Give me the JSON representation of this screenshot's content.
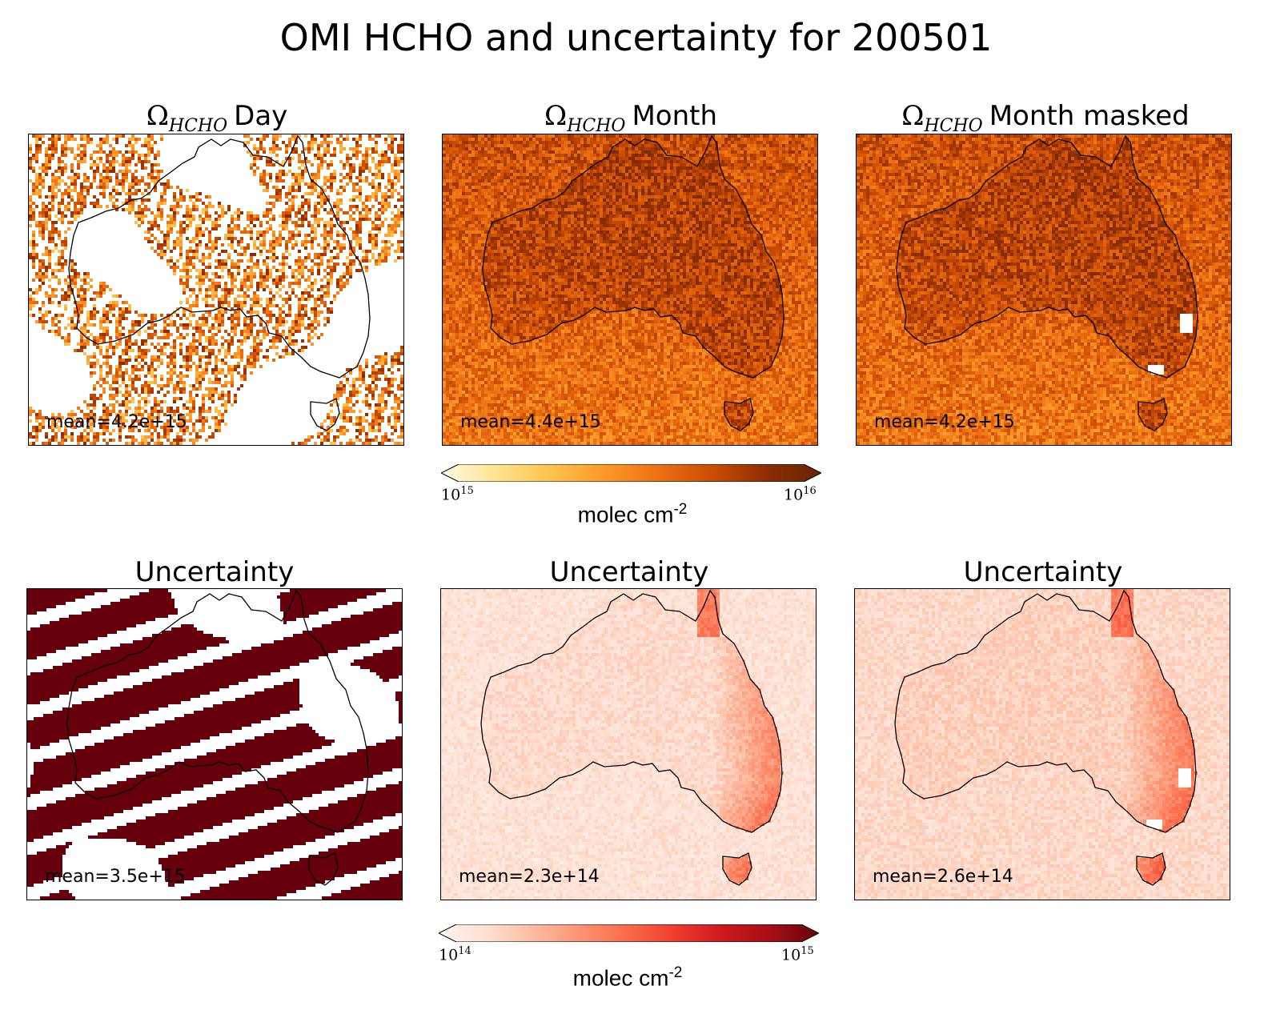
{
  "title": "OMI HCHO and uncertainty for 200501",
  "chart_data": [
    {
      "type": "heatmap",
      "panel": "day",
      "title_symbol": "Ω",
      "title_subscript": "HCHO",
      "title_text": "Day",
      "annotation": "mean=4.2e+15",
      "colormap": "YlOrBr",
      "clim": [
        1000000000000000.0,
        1e+16
      ],
      "coverage": "sparse"
    },
    {
      "type": "heatmap",
      "panel": "month",
      "title_symbol": "Ω",
      "title_subscript": "HCHO",
      "title_text": "Month",
      "annotation": "mean=4.4e+15",
      "colormap": "YlOrBr",
      "clim": [
        1000000000000000.0,
        1e+16
      ],
      "coverage": "full"
    },
    {
      "type": "heatmap",
      "panel": "month-masked",
      "title_symbol": "Ω",
      "title_subscript": "HCHO",
      "title_text": "Month masked",
      "annotation": "mean=4.2e+15",
      "colormap": "YlOrBr",
      "clim": [
        1000000000000000.0,
        1e+16
      ],
      "coverage": "masked"
    },
    {
      "type": "heatmap",
      "panel": "uncert-day",
      "title_text": "Uncertainty",
      "annotation": "mean=3.5e+15",
      "colormap": "Reds",
      "clim": [
        100000000000000.0,
        1000000000000000.0
      ],
      "coverage": "swaths"
    },
    {
      "type": "heatmap",
      "panel": "uncert-month",
      "title_text": "Uncertainty",
      "annotation": "mean=2.3e+14",
      "colormap": "Reds",
      "clim": [
        100000000000000.0,
        1000000000000000.0
      ],
      "coverage": "full"
    },
    {
      "type": "heatmap",
      "panel": "uncert-month-masked",
      "title_text": "Uncertainty",
      "annotation": "mean=2.6e+14",
      "colormap": "Reds",
      "clim": [
        100000000000000.0,
        1000000000000000.0
      ],
      "coverage": "masked"
    }
  ],
  "colorbars": [
    {
      "colormap": "YlOrBr",
      "min_base": "10",
      "min_exp": "15",
      "max_base": "10",
      "max_exp": "16",
      "label": "molec cm",
      "label_exp": "-2",
      "colors": [
        "#fffbe4",
        "#fee391",
        "#fec44f",
        "#fe9929",
        "#ec7014",
        "#cc4c02",
        "#8c2d04",
        "#662506"
      ]
    },
    {
      "colormap": "Reds",
      "min_base": "10",
      "min_exp": "14",
      "max_base": "10",
      "max_exp": "15",
      "label": "molec cm",
      "label_exp": "-2",
      "colors": [
        "#fff5f0",
        "#fee0d2",
        "#fcbba1",
        "#fc9272",
        "#fb6a4a",
        "#ef3b2c",
        "#cb181d",
        "#a50f15",
        "#67000d"
      ]
    }
  ]
}
